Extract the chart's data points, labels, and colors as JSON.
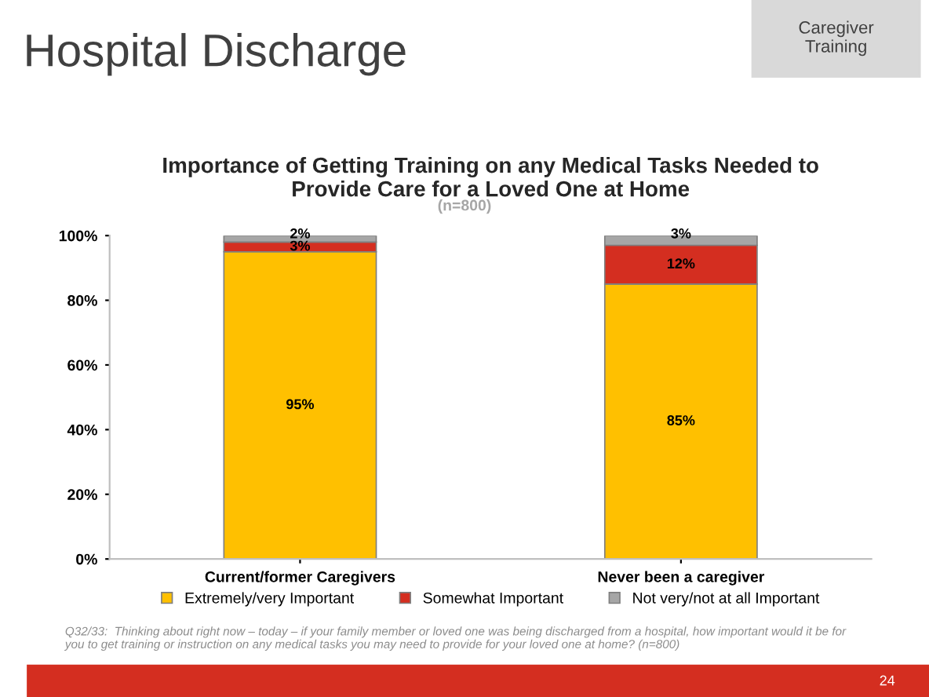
{
  "chart_data": {
    "type": "bar",
    "stacked": true,
    "title": "Importance of Getting Training on any Medical Tasks Needed to\nProvide Care for a Loved One at Home",
    "subtitle": "(n=800)",
    "categories": [
      "Current/former Caregivers",
      "Never been a caregiver"
    ],
    "series": [
      {
        "name": "Extremely/very Important",
        "color": "#ffc000",
        "values": [
          95,
          85
        ]
      },
      {
        "name": "Somewhat Important",
        "color": "#d42e20",
        "values": [
          3,
          12
        ]
      },
      {
        "name": "Not very/not at all Important",
        "color": "#a6a6a6",
        "values": [
          2,
          3
        ]
      }
    ],
    "ylim": [
      0,
      100
    ],
    "yticks": [
      {
        "value": 0,
        "label": "0%"
      },
      {
        "value": 20,
        "label": "20%"
      },
      {
        "value": 40,
        "label": "40%"
      },
      {
        "value": 60,
        "label": "60%"
      },
      {
        "value": 80,
        "label": "80%"
      },
      {
        "value": 100,
        "label": "100%"
      }
    ],
    "value_labels": [
      [
        "95%",
        "85%"
      ],
      [
        "3%",
        "12%"
      ],
      [
        "2%",
        "3%"
      ]
    ],
    "legend": "bottom",
    "grid": false,
    "annotations": [
      "Hospital Discharge",
      "Caregiver Training",
      "Q32/33:  Thinking about right now – today – if your family member or loved one was being discharged from a hospital, how important would it be for\nyou to get training or instruction on any medical tasks you may need to provide for your loved one at home? (n=800)",
      "24"
    ]
  }
}
